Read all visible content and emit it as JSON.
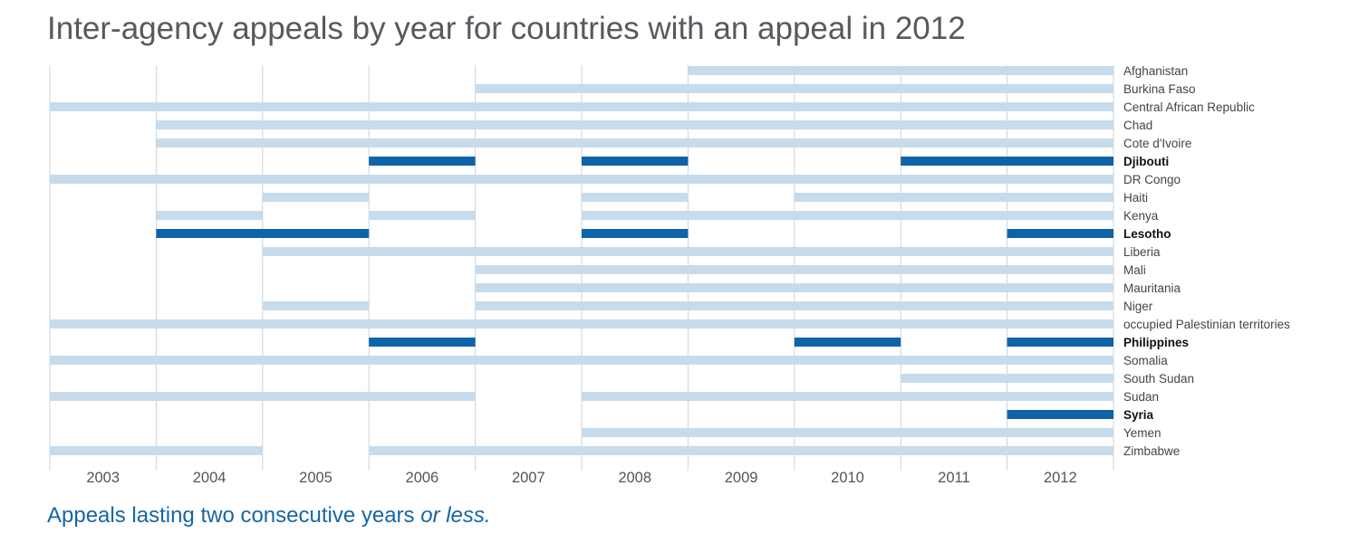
{
  "title": "Inter-agency appeals by year for countries with an appeal in 2012",
  "caption": {
    "main": "Appeals lasting two consecutive years ",
    "emphasis": "or less."
  },
  "colors": {
    "long_appeal": "#c6dcec",
    "short_appeal": "#0f63a8",
    "gridline": "#d3d3d3",
    "caption": "#1866a6"
  },
  "chart_data": {
    "type": "bar",
    "subtype": "timeline-gantt",
    "title": "Inter-agency appeals by year for countries with an appeal in 2012",
    "x_ticks": [
      2003,
      2004,
      2005,
      2006,
      2007,
      2008,
      2009,
      2010,
      2011,
      2012
    ],
    "xlim": [
      2003,
      2012
    ],
    "grid": true,
    "legend": "none",
    "caption": "Appeals lasting two consecutive years or less.",
    "countries": [
      {
        "name": "Afghanistan",
        "short_appeals": false,
        "appeals": [
          [
            2009,
            2012
          ]
        ]
      },
      {
        "name": "Burkina Faso",
        "short_appeals": false,
        "appeals": [
          [
            2007,
            2012
          ]
        ]
      },
      {
        "name": "Central African Republic",
        "short_appeals": false,
        "appeals": [
          [
            2003,
            2012
          ]
        ]
      },
      {
        "name": "Chad",
        "short_appeals": false,
        "appeals": [
          [
            2004,
            2012
          ]
        ]
      },
      {
        "name": "Cote d'Ivoire",
        "short_appeals": false,
        "appeals": [
          [
            2004,
            2012
          ]
        ]
      },
      {
        "name": "Djibouti",
        "short_appeals": true,
        "appeals": [
          [
            2006,
            2006
          ],
          [
            2008,
            2008
          ],
          [
            2011,
            2012
          ]
        ]
      },
      {
        "name": "DR Congo",
        "short_appeals": false,
        "appeals": [
          [
            2003,
            2012
          ]
        ]
      },
      {
        "name": "Haiti",
        "short_appeals": false,
        "appeals": [
          [
            2005,
            2005
          ],
          [
            2008,
            2008
          ],
          [
            2010,
            2012
          ]
        ]
      },
      {
        "name": "Kenya",
        "short_appeals": false,
        "appeals": [
          [
            2004,
            2004
          ],
          [
            2006,
            2006
          ],
          [
            2008,
            2012
          ]
        ]
      },
      {
        "name": "Lesotho",
        "short_appeals": true,
        "appeals": [
          [
            2004,
            2005
          ],
          [
            2008,
            2008
          ],
          [
            2012,
            2012
          ]
        ]
      },
      {
        "name": "Liberia",
        "short_appeals": false,
        "appeals": [
          [
            2005,
            2012
          ]
        ]
      },
      {
        "name": "Mali",
        "short_appeals": false,
        "appeals": [
          [
            2007,
            2012
          ]
        ]
      },
      {
        "name": "Mauritania",
        "short_appeals": false,
        "appeals": [
          [
            2007,
            2012
          ]
        ]
      },
      {
        "name": "Niger",
        "short_appeals": false,
        "appeals": [
          [
            2005,
            2005
          ],
          [
            2007,
            2012
          ]
        ]
      },
      {
        "name": "occupied Palestinian territories",
        "short_appeals": false,
        "appeals": [
          [
            2003,
            2012
          ]
        ]
      },
      {
        "name": "Philippines",
        "short_appeals": true,
        "appeals": [
          [
            2006,
            2006
          ],
          [
            2010,
            2010
          ],
          [
            2012,
            2012
          ]
        ]
      },
      {
        "name": "Somalia",
        "short_appeals": false,
        "appeals": [
          [
            2003,
            2012
          ]
        ]
      },
      {
        "name": "South Sudan",
        "short_appeals": false,
        "appeals": [
          [
            2011,
            2012
          ]
        ]
      },
      {
        "name": "Sudan",
        "short_appeals": false,
        "appeals": [
          [
            2003,
            2006
          ],
          [
            2008,
            2012
          ]
        ]
      },
      {
        "name": "Syria",
        "short_appeals": true,
        "appeals": [
          [
            2012,
            2012
          ]
        ]
      },
      {
        "name": "Yemen",
        "short_appeals": false,
        "appeals": [
          [
            2008,
            2012
          ]
        ]
      },
      {
        "name": "Zimbabwe",
        "short_appeals": false,
        "appeals": [
          [
            2003,
            2004
          ],
          [
            2006,
            2012
          ]
        ]
      }
    ]
  }
}
